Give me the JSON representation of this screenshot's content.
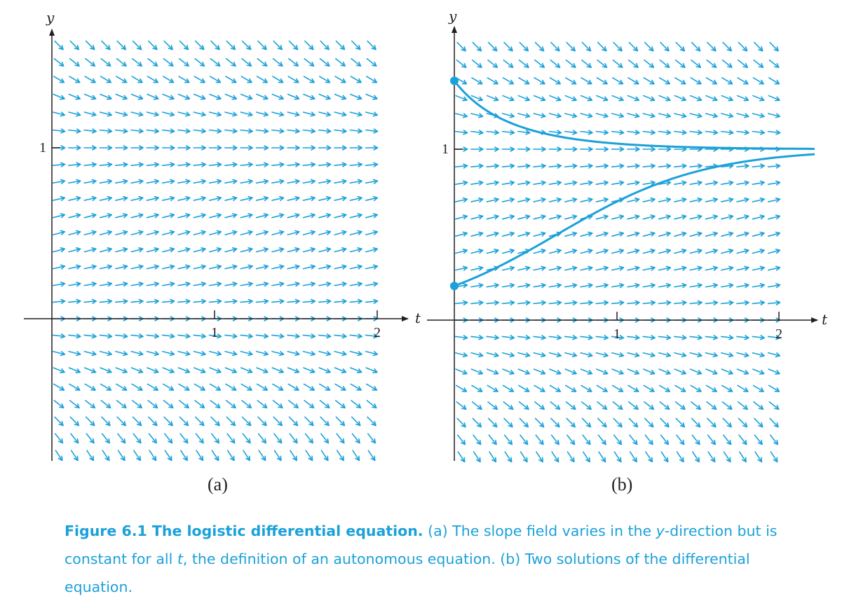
{
  "colors": {
    "accent": "#1ba1d9",
    "axis": "#231f20"
  },
  "panels": [
    {
      "id": "a",
      "label": "(a)",
      "x_axis_label": "t",
      "y_axis_label": "y",
      "x_ticks": [
        "1",
        "2"
      ],
      "y_ticks": [
        "1"
      ]
    },
    {
      "id": "b",
      "label": "(b)",
      "x_axis_label": "t",
      "y_axis_label": "y",
      "x_ticks": [
        "1",
        "2"
      ],
      "y_ticks": [
        "1"
      ],
      "solutions": [
        {
          "initial_value": 1.4
        },
        {
          "initial_value": 0.2
        }
      ]
    }
  ],
  "slope_field": {
    "equation": "dy/dt = y(1 - y)",
    "t_range": [
      0,
      2
    ],
    "y_range": [
      -0.8,
      1.6
    ]
  },
  "caption": {
    "title": "Figure 6.1 The logistic differential equation.",
    "part1": " (a) The slope field varies in the ",
    "y_letter": "y",
    "part2": "-direction but is constant for all ",
    "t_letter": "t",
    "part3": ", the definition of an autonomous equation. (b) Two solutions of the differential equation."
  }
}
